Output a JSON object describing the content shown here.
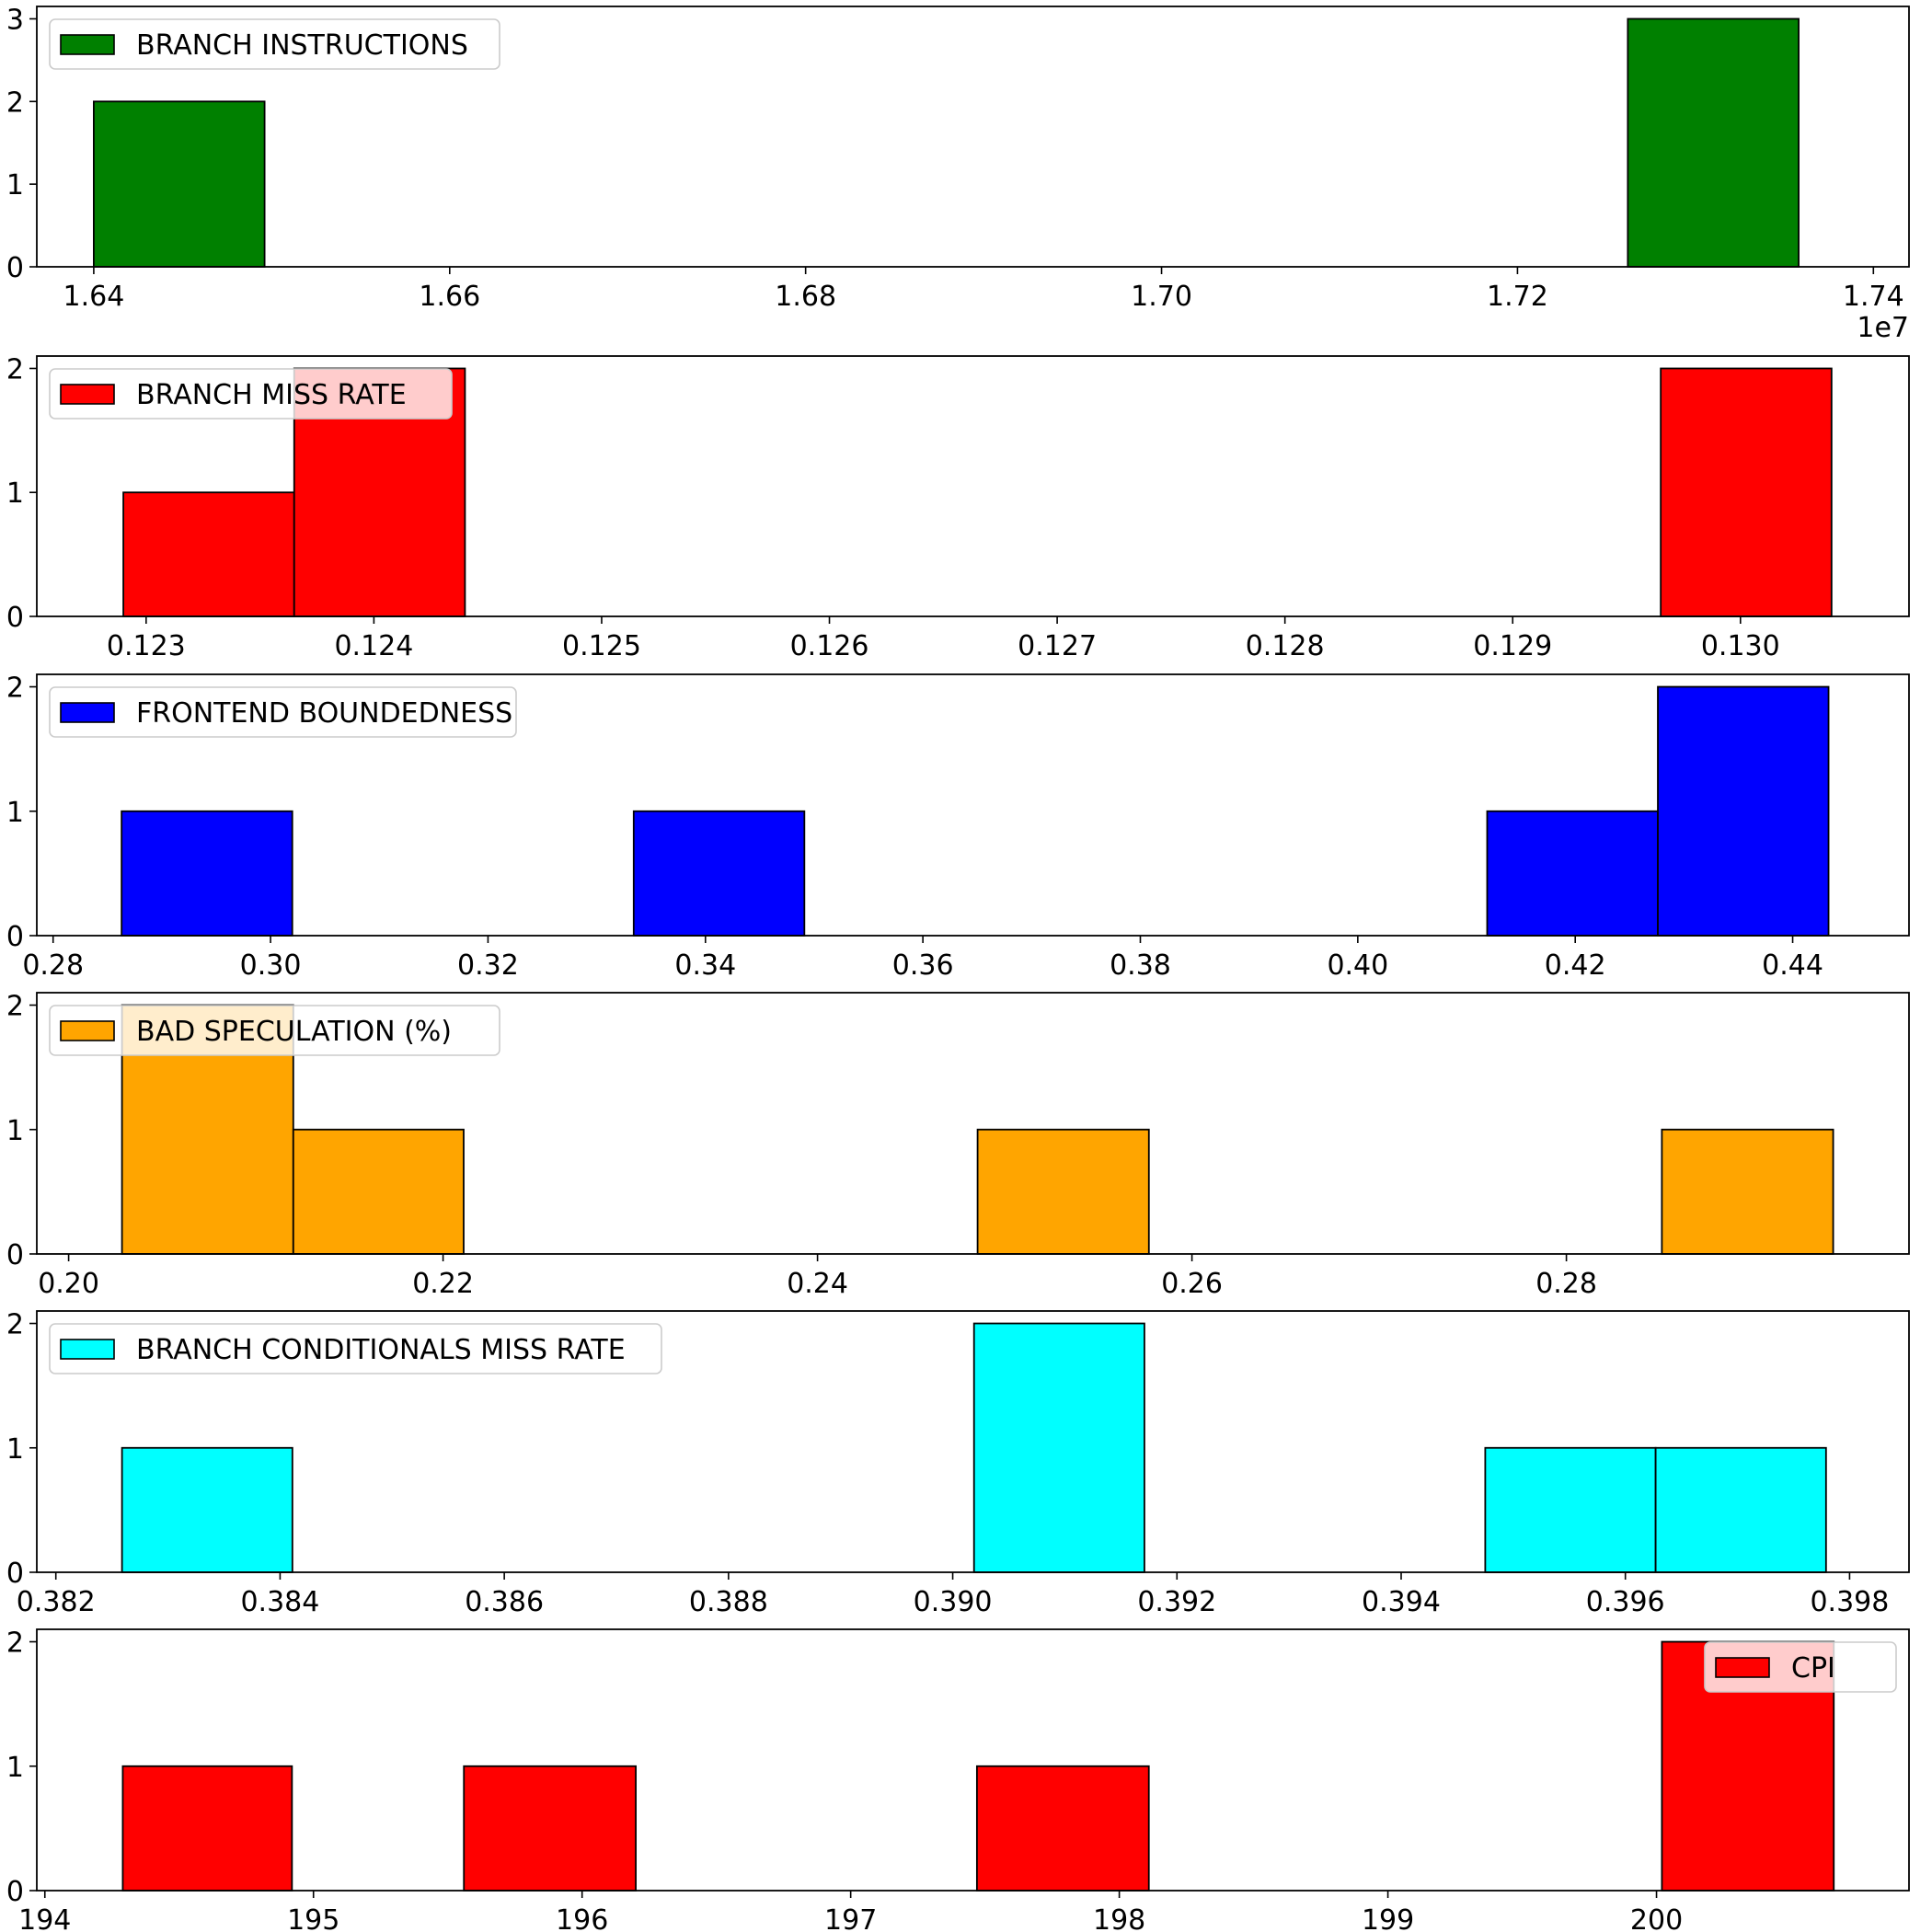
{
  "chart_data": [
    {
      "type": "bar",
      "subtype": "histogram",
      "legend": "BRANCH INSTRUCTIONS",
      "legend_loc": "upper left",
      "color": "#008000",
      "axis_offset_label": "1e7",
      "xlim": [
        1.6368,
        1.742
      ],
      "ylim": [
        0,
        3.15
      ],
      "xticks": [
        1.64,
        1.66,
        1.68,
        1.7,
        1.72,
        1.74
      ],
      "xtick_labels": [
        "1.64",
        "1.66",
        "1.68",
        "1.70",
        "1.72",
        "1.74"
      ],
      "yticks": [
        0,
        1,
        2,
        3
      ],
      "ytick_labels": [
        "0",
        "1",
        "2",
        "3"
      ],
      "bins": [
        {
          "x0": 1.64,
          "x1": 1.6496,
          "count": 2
        },
        {
          "x0": 1.7262,
          "x1": 1.7358,
          "count": 3
        }
      ]
    },
    {
      "type": "bar",
      "subtype": "histogram",
      "legend": "BRANCH MISS RATE",
      "legend_loc": "upper left",
      "color": "#ff0000",
      "xlim": [
        0.12252,
        0.13074
      ],
      "ylim": [
        0,
        2.1
      ],
      "xticks": [
        0.123,
        0.124,
        0.125,
        0.126,
        0.127,
        0.128,
        0.129,
        0.13
      ],
      "xtick_labels": [
        "0.123",
        "0.124",
        "0.125",
        "0.126",
        "0.127",
        "0.128",
        "0.129",
        "0.130"
      ],
      "yticks": [
        0,
        1,
        2
      ],
      "ytick_labels": [
        "0",
        "1",
        "2"
      ],
      "bins": [
        {
          "x0": 0.1229,
          "x1": 0.12365,
          "count": 1
        },
        {
          "x0": 0.12365,
          "x1": 0.1244,
          "count": 2
        },
        {
          "x0": 0.12965,
          "x1": 0.1304,
          "count": 2
        }
      ]
    },
    {
      "type": "bar",
      "subtype": "histogram",
      "legend": "FRONTEND BOUNDEDNESS",
      "legend_loc": "upper left",
      "color": "#0000ff",
      "xlim": [
        0.2785,
        0.4507
      ],
      "ylim": [
        0,
        2.1
      ],
      "xticks": [
        0.28,
        0.3,
        0.32,
        0.34,
        0.36,
        0.38,
        0.4,
        0.42,
        0.44
      ],
      "xtick_labels": [
        "0.28",
        "0.30",
        "0.32",
        "0.34",
        "0.36",
        "0.38",
        "0.40",
        "0.42",
        "0.44"
      ],
      "yticks": [
        0,
        1,
        2
      ],
      "ytick_labels": [
        "0",
        "1",
        "2"
      ],
      "bins": [
        {
          "x0": 0.2863,
          "x1": 0.302,
          "count": 1
        },
        {
          "x0": 0.3334,
          "x1": 0.3491,
          "count": 1
        },
        {
          "x0": 0.4119,
          "x1": 0.4276,
          "count": 1
        },
        {
          "x0": 0.4276,
          "x1": 0.4433,
          "count": 2
        }
      ]
    },
    {
      "type": "bar",
      "subtype": "histogram",
      "legend": "BAD SPECULATION (%)",
      "legend_loc": "upper left",
      "color": "#ffa500",
      "xlim": [
        0.1983,
        0.2983
      ],
      "ylim": [
        0,
        2.1
      ],
      "xticks": [
        0.2,
        0.22,
        0.24,
        0.26,
        0.28
      ],
      "xtick_labels": [
        "0.20",
        "0.22",
        "0.24",
        "0.26",
        "0.28"
      ],
      "yticks": [
        0,
        1,
        2
      ],
      "ytick_labels": [
        "0",
        "1",
        "2"
      ],
      "bins": [
        {
          "x0": 0.20285,
          "x1": 0.212,
          "count": 2
        },
        {
          "x0": 0.212,
          "x1": 0.2211,
          "count": 1
        },
        {
          "x0": 0.24855,
          "x1": 0.2577,
          "count": 1
        },
        {
          "x0": 0.2851,
          "x1": 0.29425,
          "count": 1
        }
      ]
    },
    {
      "type": "bar",
      "subtype": "histogram",
      "legend": "BRANCH CONDITIONALS MISS RATE",
      "legend_loc": "upper left",
      "color": "#00ffff",
      "xlim": [
        0.38183,
        0.39853
      ],
      "ylim": [
        0,
        2.1
      ],
      "xticks": [
        0.382,
        0.384,
        0.386,
        0.388,
        0.39,
        0.392,
        0.394,
        0.396,
        0.398
      ],
      "xtick_labels": [
        "0.382",
        "0.384",
        "0.386",
        "0.388",
        "0.390",
        "0.392",
        "0.394",
        "0.396",
        "0.398"
      ],
      "yticks": [
        0,
        1,
        2
      ],
      "ytick_labels": [
        "0",
        "1",
        "2"
      ],
      "bins": [
        {
          "x0": 0.38259,
          "x1": 0.38411,
          "count": 1
        },
        {
          "x0": 0.39019,
          "x1": 0.39171,
          "count": 2
        },
        {
          "x0": 0.39475,
          "x1": 0.39627,
          "count": 1
        },
        {
          "x0": 0.39627,
          "x1": 0.39779,
          "count": 1
        }
      ]
    },
    {
      "type": "bar",
      "subtype": "histogram",
      "legend": "CPI",
      "legend_loc": "upper right",
      "color": "#ff0000",
      "xlim": [
        193.97,
        200.94
      ],
      "ylim": [
        0,
        2.1
      ],
      "xticks": [
        194,
        195,
        196,
        197,
        198,
        199,
        200
      ],
      "xtick_labels": [
        "194",
        "195",
        "196",
        "197",
        "198",
        "199",
        "200"
      ],
      "yticks": [
        0,
        1,
        2
      ],
      "ytick_labels": [
        "0",
        "1",
        "2"
      ],
      "bins": [
        {
          "x0": 194.29,
          "x1": 194.92,
          "count": 1
        },
        {
          "x0": 195.56,
          "x1": 196.2,
          "count": 1
        },
        {
          "x0": 197.47,
          "x1": 198.11,
          "count": 1
        },
        {
          "x0": 200.02,
          "x1": 200.66,
          "count": 2
        }
      ]
    }
  ]
}
